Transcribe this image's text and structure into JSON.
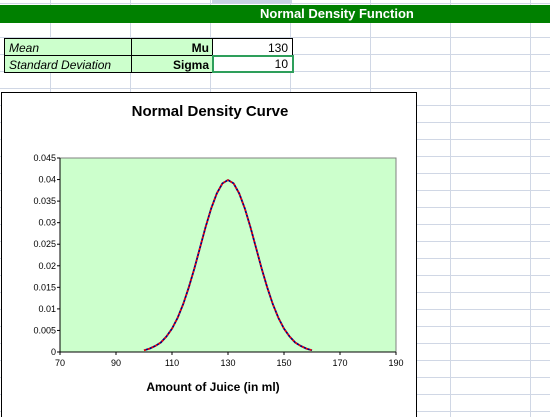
{
  "header": {
    "title": "Normal Density Function"
  },
  "parameters": [
    {
      "label": "Mean",
      "symbol": "Mu",
      "value": "130"
    },
    {
      "label": "Standard Deviation",
      "symbol": "Sigma",
      "value": "10"
    }
  ],
  "colors": {
    "title_bar": "#008000",
    "cell_fill": "#ccffcc",
    "plot_area": "#ccffcc",
    "curve_main": "#000080",
    "curve_overlay": "#ff0000",
    "selection": "#2e9f5b"
  },
  "chart_data": {
    "type": "line",
    "title": "Normal Density Curve",
    "xlabel": "Amount of Juice (in ml)",
    "ylabel": "",
    "xlim": [
      70,
      190
    ],
    "ylim": [
      0,
      0.045
    ],
    "x_ticks": [
      "70",
      "90",
      "110",
      "130",
      "150",
      "170",
      "190"
    ],
    "y_ticks": [
      "0",
      "0.005",
      "0.01",
      "0.015",
      "0.02",
      "0.025",
      "0.03",
      "0.035",
      "0.04",
      "0.045"
    ],
    "grid": false,
    "legend": "none",
    "series": [
      {
        "style": "solid",
        "color": "#000080",
        "x": [
          100,
          102,
          104,
          106,
          108,
          110,
          112,
          114,
          116,
          118,
          120,
          122,
          124,
          126,
          128,
          130,
          132,
          134,
          136,
          138,
          140,
          142,
          144,
          146,
          148,
          150,
          152,
          154,
          156,
          158,
          160
        ],
        "y": [
          0.0004,
          0.0008,
          0.0014,
          0.0022,
          0.0036,
          0.0054,
          0.0079,
          0.0111,
          0.015,
          0.0194,
          0.0242,
          0.029,
          0.0333,
          0.0368,
          0.0391,
          0.0399,
          0.0391,
          0.0368,
          0.0333,
          0.029,
          0.0242,
          0.0194,
          0.015,
          0.0111,
          0.0079,
          0.0054,
          0.0036,
          0.0022,
          0.0014,
          0.0008,
          0.0004
        ]
      },
      {
        "style": "dashed",
        "color": "#ff0000",
        "x": [
          100,
          102,
          104,
          106,
          108,
          110,
          112,
          114,
          116,
          118,
          120,
          122,
          124,
          126,
          128,
          130,
          132,
          134,
          136,
          138,
          140,
          142,
          144,
          146,
          148,
          150,
          152,
          154,
          156,
          158,
          160
        ],
        "y": [
          0.0004,
          0.0008,
          0.0014,
          0.0022,
          0.0036,
          0.0054,
          0.0079,
          0.0111,
          0.015,
          0.0194,
          0.0242,
          0.029,
          0.0333,
          0.0368,
          0.0391,
          0.0399,
          0.0391,
          0.0368,
          0.0333,
          0.029,
          0.0242,
          0.0194,
          0.015,
          0.0111,
          0.0079,
          0.0054,
          0.0036,
          0.0022,
          0.0014,
          0.0008,
          0.0004
        ]
      }
    ]
  }
}
